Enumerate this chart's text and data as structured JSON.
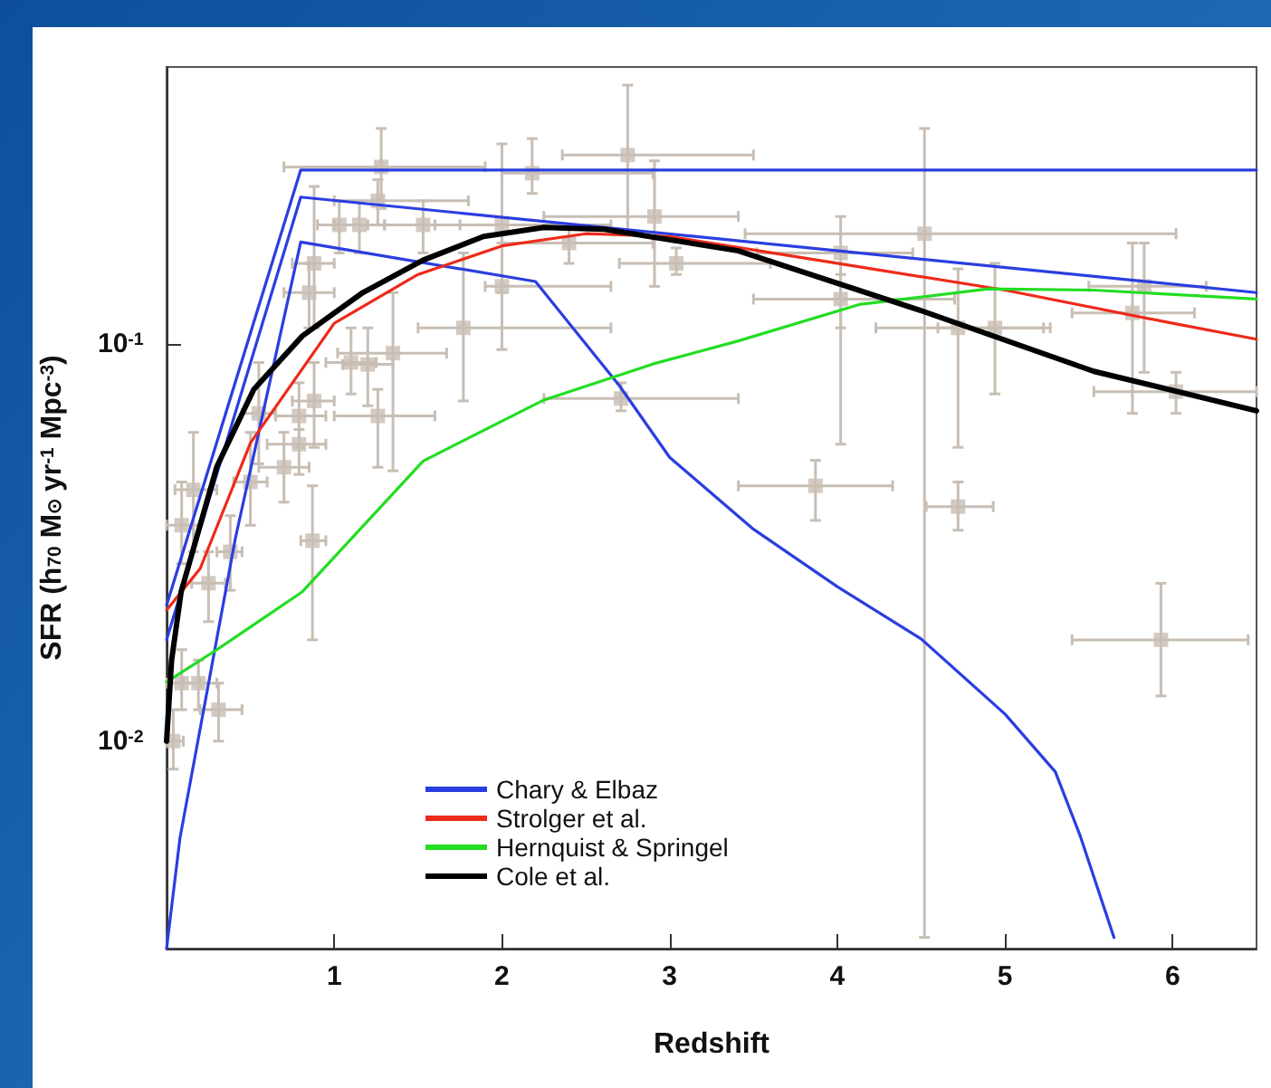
{
  "chart_data": {
    "type": "line",
    "xlabel": "Redshift",
    "ylabel": "SFR (h$_{70}$ M$_{⊙}$ yr$^{-1}$ Mpc$^{-3}$)",
    "xlim": [
      0,
      6.5
    ],
    "xticks": [
      1,
      2,
      3,
      4,
      5,
      6
    ],
    "ylim": [
      0.003,
      0.5
    ],
    "yticks": [
      {
        "value": 0.01,
        "label": "10$^{-2}$"
      },
      {
        "value": 0.1,
        "label": "10$^{-1}$"
      }
    ],
    "log": "y",
    "grid": false,
    "legend": "bottom left",
    "marker": "none",
    "line_style": "solid",
    "series": [
      {
        "type": "scatter",
        "marker": "square",
        "color": "#c8beb4",
        "x": [
          2.75,
          2.91,
          3.04,
          4.02,
          4.02,
          4.52,
          4.72,
          4.94,
          3.87,
          4.72,
          5.76,
          5.83,
          6.02,
          5.93,
          2.71,
          2.18,
          1.28,
          1.26,
          2.0,
          2.4,
          2.0,
          1.77,
          1.35,
          1.2,
          1.1,
          1.26,
          0.88,
          0.79,
          0.79,
          0.7,
          1.03,
          0.88,
          0.85,
          1.15,
          0.16,
          0.09,
          0.38,
          0.55,
          1.53,
          0.09,
          0.31,
          0.19,
          0.04,
          0.87,
          0.5,
          0.25
        ],
        "values": [
          0.3,
          0.21,
          0.16,
          0.17,
          0.13,
          0.19,
          0.11,
          0.11,
          0.044,
          0.039,
          0.12,
          0.14,
          0.076,
          0.018,
          0.073,
          0.27,
          0.28,
          0.23,
          0.2,
          0.18,
          0.14,
          0.11,
          0.095,
          0.089,
          0.09,
          0.066,
          0.072,
          0.066,
          0.056,
          0.049,
          0.2,
          0.16,
          0.135,
          0.2,
          0.043,
          0.035,
          0.03,
          0.067,
          0.2,
          0.014,
          0.012,
          0.014,
          0.01,
          0.032,
          0.045,
          0.025
        ],
        "errors": [
          [
            0.19,
            0.45
          ],
          [
            0.14,
            0.29
          ],
          [
            0.15,
            0.175
          ],
          [
            0.056,
            0.21
          ],
          [
            0.11,
            0.15
          ],
          [
            0.0032,
            0.35
          ],
          [
            0.055,
            0.155
          ],
          [
            0.075,
            0.16
          ],
          [
            0.036,
            0.051
          ],
          [
            0.034,
            0.045
          ],
          [
            0.067,
            0.18
          ],
          [
            0.085,
            0.18
          ],
          [
            0.067,
            0.085
          ],
          [
            0.013,
            0.025
          ],
          [
            0.068,
            0.08
          ],
          [
            0.24,
            0.33
          ],
          [
            0.22,
            0.35
          ],
          [
            0.2,
            0.26
          ],
          [
            0.135,
            0.32
          ],
          [
            0.16,
            0.2
          ],
          [
            0.097,
            0.18
          ],
          [
            0.072,
            0.17
          ],
          [
            0.048,
            0.135
          ],
          [
            0.07,
            0.11
          ],
          [
            0.075,
            0.11
          ],
          [
            0.049,
            0.077
          ],
          [
            0.055,
            0.09
          ],
          [
            0.055,
            0.08
          ],
          [
            0.047,
            0.061
          ],
          [
            0.04,
            0.06
          ],
          [
            0.17,
            0.23
          ],
          [
            0.11,
            0.25
          ],
          [
            0.11,
            0.16
          ],
          [
            0.17,
            0.23
          ],
          [
            0.03,
            0.06
          ],
          [
            0.028,
            0.045
          ],
          [
            0.024,
            0.037
          ],
          [
            0.05,
            0.09
          ],
          [
            0.17,
            0.23
          ],
          [
            0.012,
            0.017
          ],
          [
            0.01,
            0.014
          ],
          [
            0.012,
            0.016
          ],
          [
            0.0085,
            0.012
          ],
          [
            0.018,
            0.044
          ],
          [
            0.035,
            0.06
          ],
          [
            0.02,
            0.03
          ]
        ],
        "xerrors": [
          [
            2.36,
            3.5
          ],
          [
            2.25,
            3.41
          ],
          [
            2.7,
            3.6
          ],
          [
            3.52,
            4.45
          ],
          [
            3.5,
            4.7
          ],
          [
            3.45,
            6.02
          ],
          [
            4.23,
            5.23
          ],
          [
            4.6,
            5.27
          ],
          [
            3.41,
            4.33
          ],
          [
            4.53,
            4.93
          ],
          [
            5.4,
            6.13
          ],
          [
            5.5,
            6.2
          ],
          [
            5.53,
            6.5
          ],
          [
            5.4,
            6.45
          ],
          [
            2.25,
            3.41
          ],
          [
            2.0,
            2.9
          ],
          [
            0.7,
            1.9
          ],
          [
            1.0,
            1.8
          ],
          [
            1.6,
            2.65
          ],
          [
            2.0,
            2.9
          ],
          [
            1.9,
            2.65
          ],
          [
            1.5,
            2.65
          ],
          [
            1.02,
            1.67
          ],
          [
            1.05,
            1.35
          ],
          [
            0.95,
            1.25
          ],
          [
            1.0,
            1.6
          ],
          [
            0.75,
            1.0
          ],
          [
            0.65,
            0.95
          ],
          [
            0.6,
            0.95
          ],
          [
            0.55,
            0.85
          ],
          [
            0.9,
            1.2
          ],
          [
            0.75,
            1.0
          ],
          [
            0.7,
            1.0
          ],
          [
            1.0,
            1.3
          ],
          [
            0.05,
            0.3
          ],
          [
            0.0,
            0.2
          ],
          [
            0.3,
            0.45
          ],
          [
            0.45,
            0.65
          ],
          [
            1.3,
            1.75
          ],
          [
            0.0,
            0.2
          ],
          [
            0.2,
            0.45
          ],
          [
            0.1,
            0.3
          ],
          [
            0.0,
            0.1
          ],
          [
            0.8,
            0.95
          ],
          [
            0.4,
            0.6
          ],
          [
            0.15,
            0.35
          ]
        ]
      },
      {
        "name": "Chary & Elbaz",
        "color": "#2a3ee0",
        "x": [
          0,
          0.8,
          6.5
        ],
        "values": [
          0.022,
          0.275,
          0.275
        ]
      },
      {
        "color": "#2a3ee0",
        "x": [
          0,
          0.8,
          6.5
        ],
        "values": [
          0.018,
          0.235,
          0.135
        ]
      },
      {
        "color": "#2a3ee0",
        "x": [
          0,
          0.08,
          0.41,
          0.8,
          2.2,
          2.7,
          3.0,
          3.5,
          4.0,
          4.5,
          5.0,
          5.3,
          5.45,
          5.65
        ],
        "values": [
          0.003,
          0.0057,
          0.0324,
          0.181,
          0.144,
          0.0787,
          0.0519,
          0.0342,
          0.0245,
          0.0181,
          0.0117,
          0.00837,
          0.00575,
          0.0032
        ]
      },
      {
        "name": "Strolger et al.",
        "color": "#ee2a1a",
        "x": [
          0,
          0.2,
          0.5,
          1,
          1.5,
          2,
          2.5,
          3,
          4,
          5,
          6,
          6.5
        ],
        "values": [
          0.0214,
          0.0272,
          0.0564,
          0.113,
          0.15,
          0.177,
          0.19,
          0.187,
          0.16,
          0.137,
          0.113,
          0.103
        ]
      },
      {
        "name": "Hernquist & Springel",
        "color": "#22dd22",
        "x": [
          0,
          0.3,
          0.81,
          1.53,
          2.25,
          2.9,
          3.41,
          4.13,
          4.9,
          5.53,
          6.5
        ],
        "values": [
          0.0141,
          0.017,
          0.0238,
          0.0508,
          0.0724,
          0.0892,
          0.102,
          0.126,
          0.138,
          0.137,
          0.13
        ]
      },
      {
        "name": "Cole et al.",
        "color": "#000000",
        "x": [
          0,
          0.03,
          0.087,
          0.3,
          0.52,
          0.81,
          1.17,
          1.53,
          1.89,
          2.25,
          2.61,
          3.41,
          4.49,
          5.53,
          6.5
        ],
        "values": [
          0.01,
          0.016,
          0.0238,
          0.0492,
          0.077,
          0.105,
          0.135,
          0.163,
          0.187,
          0.197,
          0.195,
          0.172,
          0.122,
          0.0855,
          0.068
        ]
      }
    ]
  }
}
